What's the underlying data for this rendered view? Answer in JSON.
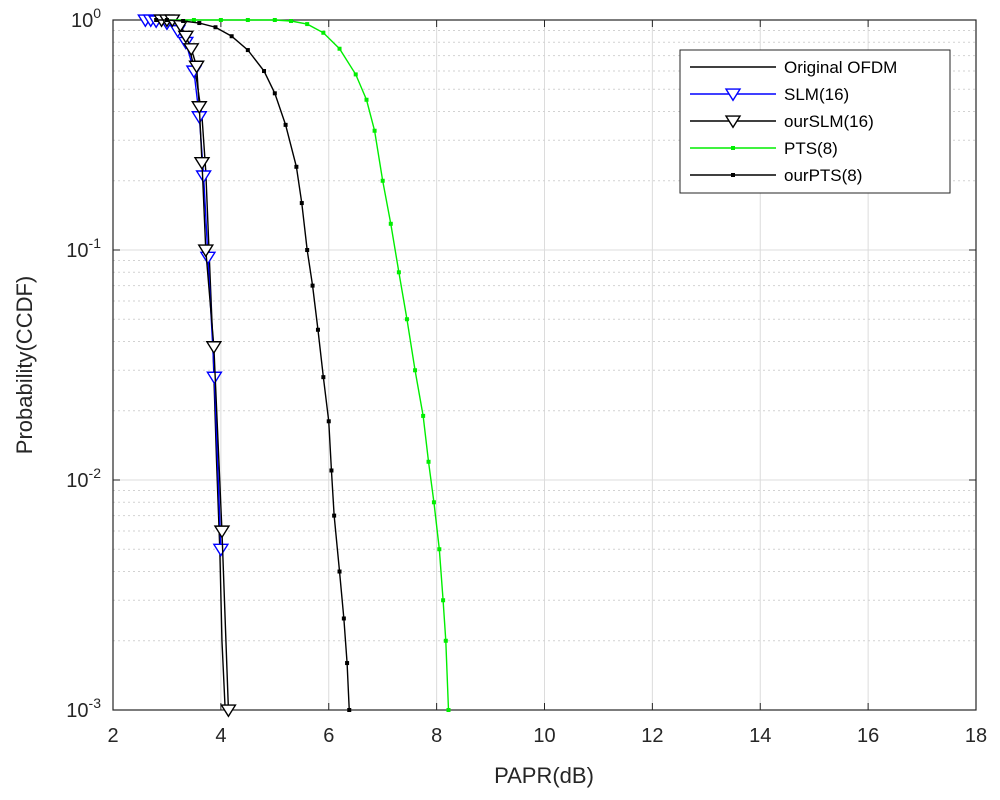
{
  "chart_data": {
    "type": "line",
    "title": "",
    "xlabel": "PAPR(dB)",
    "ylabel": "Probability(CCDF)",
    "xlim": [
      2,
      18
    ],
    "ylim": [
      0.001,
      1
    ],
    "yscale": "log",
    "grid": true,
    "minor_grid": true,
    "legend_position": "top-right",
    "x_ticks": [
      "2",
      "4",
      "6",
      "8",
      "10",
      "12",
      "14",
      "16",
      "18"
    ],
    "y_ticks": [
      {
        "value": 0.001,
        "base": "10",
        "exp": "-3"
      },
      {
        "value": 0.01,
        "base": "10",
        "exp": "-2"
      },
      {
        "value": 0.1,
        "base": "10",
        "exp": "-1"
      },
      {
        "value": 1,
        "base": "10",
        "exp": "0"
      }
    ],
    "series": [
      {
        "name": "Original OFDM",
        "color": "#000000",
        "marker": "none",
        "points": [
          [
            2.6,
            1
          ],
          [
            2.9,
            1
          ],
          [
            3.1,
            0.97
          ],
          [
            3.3,
            0.85
          ],
          [
            3.45,
            0.7
          ],
          [
            3.55,
            0.55
          ],
          [
            3.65,
            0.38
          ],
          [
            3.72,
            0.22
          ],
          [
            3.78,
            0.1
          ],
          [
            3.85,
            0.04
          ],
          [
            3.92,
            0.012
          ],
          [
            3.98,
            0.005
          ],
          [
            4.02,
            0.002
          ],
          [
            4.08,
            0.001
          ]
        ]
      },
      {
        "name": "SLM(16)",
        "color": "#0000ff",
        "marker": "triangle-down",
        "points": [
          [
            2.6,
            1
          ],
          [
            2.7,
            1
          ],
          [
            2.8,
            0.99
          ],
          [
            3.0,
            0.97
          ],
          [
            3.2,
            0.9
          ],
          [
            3.35,
            0.8
          ],
          [
            3.5,
            0.6
          ],
          [
            3.6,
            0.38
          ],
          [
            3.68,
            0.21
          ],
          [
            3.76,
            0.093
          ],
          [
            3.88,
            0.028
          ],
          [
            4.0,
            0.005
          ]
        ]
      },
      {
        "name": "ourSLM(16)",
        "color": "#000000",
        "marker": "triangle-down",
        "points": [
          [
            2.9,
            1
          ],
          [
            3.0,
            1
          ],
          [
            3.1,
            1
          ],
          [
            3.25,
            0.95
          ],
          [
            3.35,
            0.85
          ],
          [
            3.45,
            0.75
          ],
          [
            3.55,
            0.63
          ],
          [
            3.6,
            0.42
          ],
          [
            3.65,
            0.24
          ],
          [
            3.72,
            0.1
          ],
          [
            3.87,
            0.038
          ],
          [
            4.02,
            0.006
          ],
          [
            4.14,
            0.001
          ]
        ]
      },
      {
        "name": "PTS(8)",
        "color": "#00ee00",
        "marker": "dot",
        "points": [
          [
            3.0,
            1
          ],
          [
            3.5,
            1
          ],
          [
            4.0,
            1
          ],
          [
            4.5,
            1
          ],
          [
            5.0,
            1
          ],
          [
            5.3,
            0.99
          ],
          [
            5.6,
            0.96
          ],
          [
            5.9,
            0.88
          ],
          [
            6.2,
            0.75
          ],
          [
            6.5,
            0.58
          ],
          [
            6.7,
            0.45
          ],
          [
            6.85,
            0.33
          ],
          [
            7.0,
            0.2
          ],
          [
            7.15,
            0.13
          ],
          [
            7.3,
            0.08
          ],
          [
            7.45,
            0.05
          ],
          [
            7.6,
            0.03
          ],
          [
            7.75,
            0.019
          ],
          [
            7.85,
            0.012
          ],
          [
            7.95,
            0.008
          ],
          [
            8.05,
            0.005
          ],
          [
            8.12,
            0.003
          ],
          [
            8.17,
            0.002
          ],
          [
            8.22,
            0.001
          ]
        ]
      },
      {
        "name": "ourPTS(8)",
        "color": "#000000",
        "marker": "dot",
        "points": [
          [
            2.8,
            1
          ],
          [
            3.0,
            1
          ],
          [
            3.3,
            0.99
          ],
          [
            3.6,
            0.97
          ],
          [
            3.9,
            0.93
          ],
          [
            4.2,
            0.85
          ],
          [
            4.5,
            0.74
          ],
          [
            4.8,
            0.6
          ],
          [
            5.0,
            0.48
          ],
          [
            5.2,
            0.35
          ],
          [
            5.4,
            0.23
          ],
          [
            5.5,
            0.16
          ],
          [
            5.6,
            0.1
          ],
          [
            5.7,
            0.07
          ],
          [
            5.8,
            0.045
          ],
          [
            5.9,
            0.028
          ],
          [
            6.0,
            0.018
          ],
          [
            6.05,
            0.011
          ],
          [
            6.1,
            0.007
          ],
          [
            6.2,
            0.004
          ],
          [
            6.28,
            0.0025
          ],
          [
            6.34,
            0.0016
          ],
          [
            6.38,
            0.001
          ]
        ]
      }
    ]
  }
}
